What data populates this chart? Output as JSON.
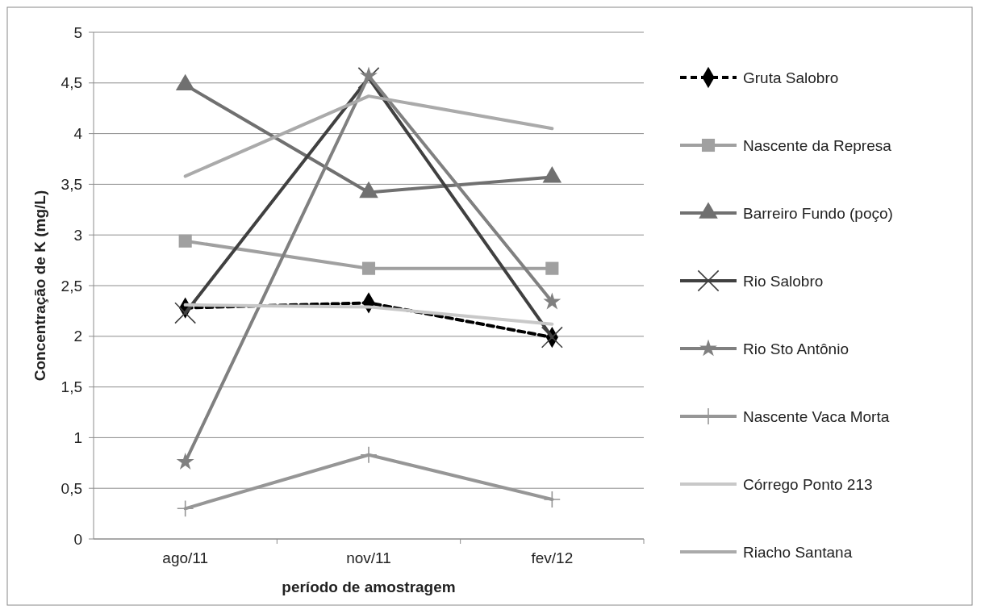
{
  "chart_data": {
    "type": "line",
    "xlabel": "período de amostragem",
    "ylabel": "Concentração de K (mg/L)",
    "categories": [
      "ago/11",
      "nov/11",
      "fev/12"
    ],
    "series": [
      {
        "name": "Gruta Salobro",
        "color": "#000000",
        "values": [
          2.28,
          2.33,
          1.99
        ],
        "marker": "diamond",
        "line_style": "dashed"
      },
      {
        "name": "Nascente da Represa",
        "color": "#a0a0a0",
        "values": [
          2.94,
          2.67,
          2.67
        ],
        "marker": "square"
      },
      {
        "name": "Barreiro Fundo (poço)",
        "color": "#707070",
        "values": [
          4.48,
          3.42,
          3.57
        ],
        "marker": "triangle"
      },
      {
        "name": "Rio Salobro",
        "color": "#404040",
        "values": [
          2.23,
          4.55,
          1.99
        ],
        "marker": "x"
      },
      {
        "name": "Rio Sto Antônio",
        "color": "#808080",
        "values": [
          0.76,
          4.57,
          2.34
        ],
        "marker": "star"
      },
      {
        "name": "Nascente Vaca Morta",
        "color": "#969696",
        "values": [
          0.3,
          0.83,
          0.39
        ],
        "marker": "cross"
      },
      {
        "name": "Córrego Ponto 213",
        "color": "#c8c8c8",
        "values": [
          2.31,
          2.29,
          2.12
        ],
        "marker": "none"
      },
      {
        "name": "Riacho Santana",
        "color": "#aaaaaa",
        "values": [
          3.58,
          4.37,
          4.05
        ],
        "marker": "none"
      }
    ],
    "ylim": [
      0,
      5
    ],
    "yticks": [
      0,
      {
        "value": 0.5,
        "label": "0,5"
      },
      1,
      {
        "value": 1.5,
        "label": "1,5"
      },
      2,
      {
        "value": 2.5,
        "label": "2,5"
      },
      3,
      {
        "value": 3.5,
        "label": "3,5"
      },
      4,
      {
        "value": 4.5,
        "label": "4,5"
      },
      5
    ],
    "grid": "y",
    "legend": "right"
  }
}
